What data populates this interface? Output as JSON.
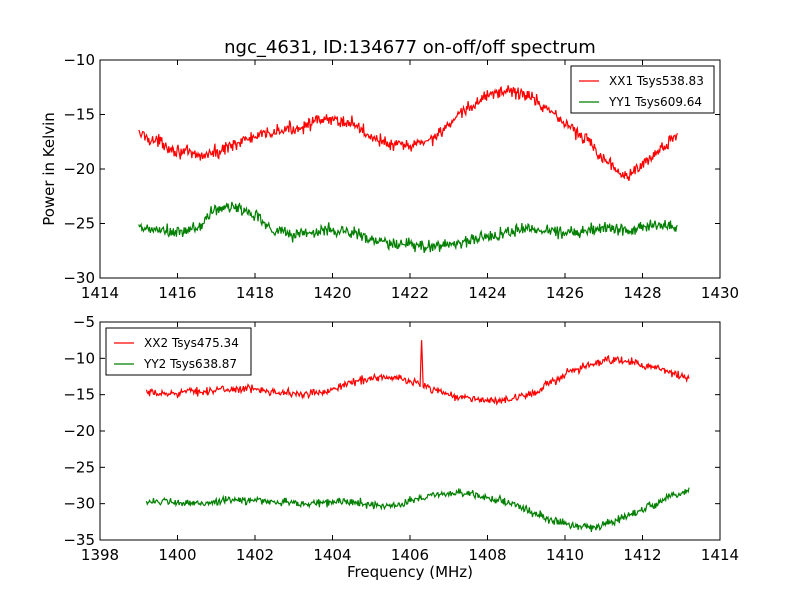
{
  "chart_data": [
    {
      "type": "line",
      "title": "ngc_4631, ID:134677 on-off/off spectrum",
      "xlabel": "",
      "ylabel": "Power in Kelvin",
      "xlim": [
        1414,
        1430
      ],
      "ylim": [
        -30,
        -10
      ],
      "xticks": [
        1414,
        1416,
        1418,
        1420,
        1422,
        1424,
        1426,
        1428,
        1430
      ],
      "yticks": [
        -30,
        -25,
        -20,
        -15,
        -10
      ],
      "legend_position": "top-right",
      "grid": false,
      "series": [
        {
          "name": "XX1 Tsys538.83",
          "color": "#ff0000",
          "x_range": [
            1415.0,
            1428.9
          ],
          "x": [
            1415.0,
            1415.5,
            1416.0,
            1416.5,
            1417.0,
            1417.5,
            1418.0,
            1418.5,
            1419.0,
            1419.5,
            1420.0,
            1420.5,
            1421.0,
            1421.5,
            1422.0,
            1422.5,
            1423.0,
            1423.5,
            1424.0,
            1424.5,
            1425.0,
            1425.5,
            1426.0,
            1426.5,
            1427.0,
            1427.5,
            1428.0,
            1428.5,
            1428.9
          ],
          "y": [
            -16.8,
            -17.5,
            -18.3,
            -18.8,
            -18.5,
            -17.6,
            -17.1,
            -16.6,
            -16.3,
            -15.7,
            -15.5,
            -15.8,
            -17.0,
            -17.8,
            -17.9,
            -17.3,
            -16.0,
            -14.5,
            -13.2,
            -12.8,
            -13.2,
            -14.3,
            -15.8,
            -17.2,
            -19.0,
            -20.5,
            -19.6,
            -18.1,
            -17.0
          ],
          "noise": 0.9
        },
        {
          "name": "YY1 Tsys609.64",
          "color": "#007f00",
          "x_range": [
            1415.0,
            1428.9
          ],
          "x": [
            1415.0,
            1415.5,
            1416.0,
            1416.5,
            1417.0,
            1417.5,
            1418.0,
            1418.5,
            1419.0,
            1419.5,
            1420.0,
            1420.5,
            1421.0,
            1421.5,
            1422.0,
            1422.5,
            1423.0,
            1423.5,
            1424.0,
            1424.5,
            1425.0,
            1425.5,
            1426.0,
            1426.5,
            1427.0,
            1427.5,
            1428.0,
            1428.5,
            1428.9
          ],
          "y": [
            -25.5,
            -25.6,
            -25.9,
            -25.4,
            -23.7,
            -23.5,
            -24.2,
            -25.6,
            -26.0,
            -25.8,
            -25.6,
            -25.8,
            -26.5,
            -26.9,
            -27.0,
            -27.1,
            -26.9,
            -26.6,
            -26.2,
            -25.8,
            -25.5,
            -25.6,
            -25.8,
            -25.6,
            -25.4,
            -25.5,
            -25.3,
            -25.2,
            -25.3
          ],
          "noise": 0.9
        }
      ]
    },
    {
      "type": "line",
      "title": "",
      "xlabel": "Frequency (MHz)",
      "ylabel": "",
      "xlim": [
        1398,
        1414
      ],
      "ylim": [
        -35,
        -5
      ],
      "xticks": [
        1398,
        1400,
        1402,
        1404,
        1406,
        1408,
        1410,
        1412,
        1414
      ],
      "yticks": [
        -35,
        -30,
        -25,
        -20,
        -15,
        -10,
        -5
      ],
      "legend_position": "top-left",
      "grid": false,
      "series": [
        {
          "name": "XX2 Tsys475.34",
          "color": "#ff0000",
          "x_range": [
            1399.2,
            1413.2
          ],
          "x": [
            1399.2,
            1399.7,
            1400.2,
            1400.7,
            1401.2,
            1401.7,
            1402.2,
            1402.7,
            1403.2,
            1403.7,
            1404.2,
            1404.7,
            1405.2,
            1405.7,
            1406.2,
            1406.7,
            1407.2,
            1407.7,
            1408.2,
            1408.7,
            1409.2,
            1409.7,
            1410.2,
            1410.7,
            1411.2,
            1411.7,
            1412.2,
            1412.7,
            1413.2
          ],
          "y": [
            -14.8,
            -14.9,
            -14.6,
            -14.5,
            -14.3,
            -14.2,
            -14.3,
            -14.7,
            -15.0,
            -14.7,
            -13.8,
            -13.0,
            -12.6,
            -12.8,
            -13.4,
            -14.4,
            -15.3,
            -15.6,
            -15.9,
            -15.6,
            -14.7,
            -13.2,
            -11.8,
            -10.8,
            -10.2,
            -10.5,
            -11.2,
            -11.9,
            -12.8
          ],
          "noise": 0.8,
          "spike": {
            "x": 1406.3,
            "y": -7.5
          }
        },
        {
          "name": "YY2 Tsys638.87",
          "color": "#007f00",
          "x_range": [
            1399.2,
            1413.2
          ],
          "x": [
            1399.2,
            1399.7,
            1400.2,
            1400.7,
            1401.2,
            1401.7,
            1402.2,
            1402.7,
            1403.2,
            1403.7,
            1404.2,
            1404.7,
            1405.2,
            1405.7,
            1406.2,
            1406.7,
            1407.2,
            1407.7,
            1408.2,
            1408.7,
            1409.2,
            1409.7,
            1410.2,
            1410.7,
            1411.2,
            1411.7,
            1412.2,
            1412.7,
            1413.2
          ],
          "y": [
            -29.6,
            -29.8,
            -30.0,
            -29.9,
            -29.6,
            -29.5,
            -29.6,
            -29.8,
            -30.0,
            -29.9,
            -29.7,
            -29.9,
            -30.3,
            -30.1,
            -29.4,
            -28.7,
            -28.5,
            -28.8,
            -29.4,
            -30.2,
            -31.3,
            -32.3,
            -33.0,
            -33.1,
            -32.6,
            -31.5,
            -30.3,
            -29.0,
            -28.2
          ],
          "noise": 0.8
        }
      ]
    }
  ]
}
